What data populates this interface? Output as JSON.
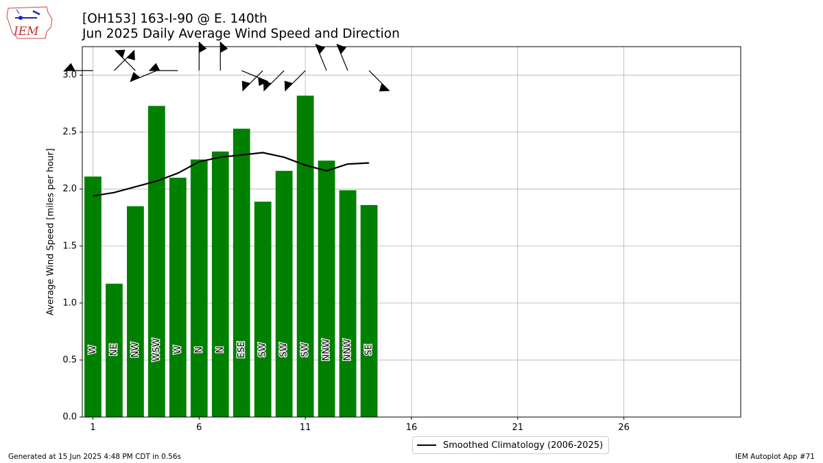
{
  "logo": {
    "text": "IEM"
  },
  "header": {
    "title_line1": "[OH153] 163-I-90 @ E. 140th",
    "title_line2": "Jun 2025 Daily Average Wind Speed and Direction"
  },
  "legend": {
    "label": "Smoothed Climatology (2006-2025)"
  },
  "footer": {
    "left": "Generated at 15 Jun 2025 4:48 PM CDT in 0.56s",
    "right": "IEM Autoplot App #71"
  },
  "colors": {
    "bar": "#008000",
    "climo": "#000000",
    "grid": "#b0b0b0"
  },
  "chart_data": {
    "type": "bar",
    "title": "[OH153] 163-I-90 @ E. 140th\nJun 2025 Daily Average Wind Speed and Direction",
    "ylabel": "Average Wind Speed [miles per hour]",
    "xlabel": "",
    "xlim": [
      0.5,
      31.5
    ],
    "ylim": [
      0,
      3.25
    ],
    "xticks": [
      1,
      6,
      11,
      16,
      21,
      26
    ],
    "yticks": [
      0.0,
      0.5,
      1.0,
      1.5,
      2.0,
      2.5,
      3.0
    ],
    "ytick_labels": [
      "0.0",
      "0.5",
      "1.0",
      "1.5",
      "2.0",
      "2.5",
      "3.0"
    ],
    "grid": true,
    "legend_position": "bottom-center",
    "days": [
      1,
      2,
      3,
      4,
      5,
      6,
      7,
      8,
      9,
      10,
      11,
      12,
      13,
      14
    ],
    "series": [
      {
        "name": "Daily Average Wind Speed",
        "values": [
          2.11,
          1.17,
          1.85,
          2.73,
          2.1,
          2.26,
          2.33,
          2.53,
          1.89,
          2.16,
          2.82,
          2.25,
          1.99,
          1.86
        ],
        "directions": [
          "W",
          "NE",
          "NW",
          "WSW",
          "W",
          "N",
          "N",
          "ESE",
          "SW",
          "SW",
          "SW",
          "NNW",
          "NNW",
          "SE"
        ]
      },
      {
        "name": "Smoothed Climatology (2006-2025)",
        "values": [
          1.94,
          1.97,
          2.02,
          2.07,
          2.14,
          2.24,
          2.28,
          2.3,
          2.32,
          2.28,
          2.21,
          2.16,
          2.22,
          2.23
        ]
      }
    ],
    "wind_barbs": {
      "level": 3.04,
      "directions_deg": [
        270,
        45,
        315,
        247.5,
        270,
        0,
        0,
        112.5,
        225,
        225,
        225,
        337.5,
        337.5,
        135
      ]
    }
  }
}
